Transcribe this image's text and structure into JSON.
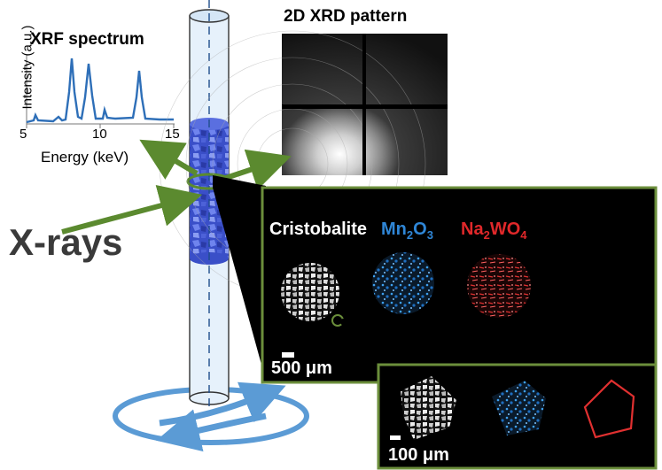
{
  "xrf": {
    "title": "XRF spectrum",
    "xlabel": "Energy (keV)",
    "ylabel": "Intensity (a.u.)",
    "ticks": [
      "5",
      "10",
      "15"
    ],
    "line_color": "#2e6fb8"
  },
  "xrd": {
    "title": "2D XRD pattern"
  },
  "beam": {
    "label": "X-rays",
    "arrow_color": "#5b8a2f"
  },
  "maps": {
    "phases": [
      {
        "name": "Cristobalite",
        "sub": "",
        "tail": "",
        "color": "#ffffff"
      },
      {
        "name": "Mn",
        "sub": "2",
        "mid": "O",
        "sub2": "3",
        "color": "#2f86d6"
      },
      {
        "name": "Na",
        "sub": "2",
        "mid": "WO",
        "sub2": "4",
        "color": "#e0282a"
      }
    ],
    "scale_large": "500 μm",
    "scale_small": "100 μm",
    "frame_color": "#6b8e3b"
  },
  "rotation_color": "#5b9bd5"
}
